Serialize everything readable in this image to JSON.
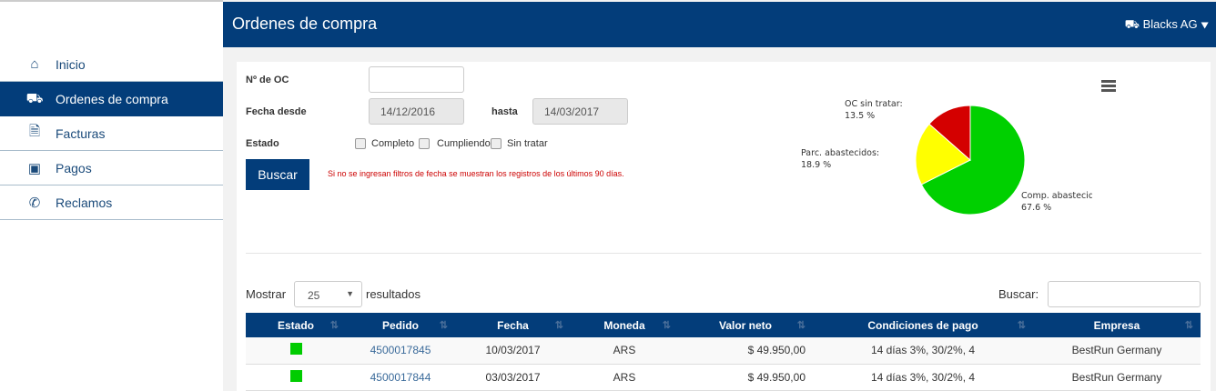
{
  "sidebar": {
    "items": [
      {
        "label": "Inicio",
        "icon": "home-icon"
      },
      {
        "label": "Ordenes de compra",
        "icon": "truck-icon"
      },
      {
        "label": "Facturas",
        "icon": "document-icon"
      },
      {
        "label": "Pagos",
        "icon": "money-icon"
      },
      {
        "label": "Reclamos",
        "icon": "phone-icon"
      }
    ]
  },
  "header": {
    "title": "Ordenes de compra",
    "user": "Blacks AG"
  },
  "filters": {
    "oc_label": "Nº de OC",
    "oc_value": "",
    "fecha_desde_label": "Fecha desde",
    "fecha_desde": "14/12/2016",
    "hasta_label": "hasta",
    "hasta": "14/03/2017",
    "estado_label": "Estado",
    "estados": [
      "Completo",
      "Cumpliendo",
      "Sin tratar"
    ],
    "buscar": "Buscar",
    "note": "Si no se ingresan filtros de fecha se muestran los registros de los últimos 90 días."
  },
  "chart_data": {
    "type": "pie",
    "slices": [
      {
        "label": "Comp. abastecidos:",
        "value": 67.6,
        "text": "67.6 %",
        "color": "#00d000"
      },
      {
        "label": "Parc. abastecidos:",
        "value": 18.9,
        "text": "18.9 %",
        "color": "#ffff00"
      },
      {
        "label": "OC sin tratar:",
        "value": 13.5,
        "text": "13.5 %",
        "color": "#d40000"
      }
    ]
  },
  "table": {
    "mostrar": "Mostrar",
    "page_size": "25",
    "resultados": "resultados",
    "buscar": "Buscar:",
    "columns": [
      "Estado",
      "Pedido",
      "Fecha",
      "Moneda",
      "Valor neto",
      "Condiciones de pago",
      "Empresa"
    ],
    "rows": [
      {
        "status_color": "#00cc00",
        "pedido": "4500017845",
        "fecha": "10/03/2017",
        "moneda": "ARS",
        "valor": "$ 49.950,00",
        "condiciones": "14 días 3%, 30/2%, 4",
        "empresa": "BestRun Germany"
      },
      {
        "status_color": "#00cc00",
        "pedido": "4500017844",
        "fecha": "03/03/2017",
        "moneda": "ARS",
        "valor": "$ 49.950,00",
        "condiciones": "14 días 3%, 30/2%, 4",
        "empresa": "BestRun Germany"
      }
    ]
  }
}
